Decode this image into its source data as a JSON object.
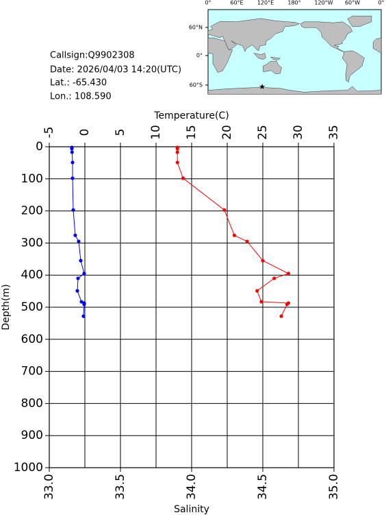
{
  "info": [
    "Callsign:Q9902308",
    "Date:  2026/04/03 14:20(UTC)",
    "Lat.:  -65.430",
    "Lon.:  108.590"
  ],
  "map": {
    "lon_labels": [
      "0°",
      "60°E",
      "120°E",
      "180°",
      "120°W",
      "60°W",
      "0°"
    ],
    "lat_labels": [
      "60°N",
      "0°",
      "60°S"
    ]
  },
  "chart_data": {
    "type": "line",
    "x_label": "Salinity",
    "x2_label": "Temperature(C)",
    "y_label": "Depth(m)",
    "xlim": [
      33.0,
      35.0
    ],
    "xticks": [
      {
        "value": 33.0,
        "label": "33.0"
      },
      33.5,
      {
        "value": 34.0,
        "label": "34.0"
      },
      34.5,
      {
        "value": 35.0,
        "label": "35.0"
      }
    ],
    "x2lim": [
      -5,
      35
    ],
    "x2ticks": [
      -5,
      0,
      5,
      10,
      15,
      20,
      25,
      30,
      35
    ],
    "ylim": [
      0,
      1000
    ],
    "yticks": [
      0,
      100,
      200,
      300,
      400,
      500,
      600,
      700,
      800,
      900,
      1000
    ],
    "y_inverted": true,
    "grid": true,
    "depth": [
      2,
      6,
      17,
      49,
      98,
      197,
      276,
      295,
      355,
      395,
      410,
      449,
      483,
      487,
      491,
      528
    ],
    "series": [
      {
        "color": "#0000ff",
        "axis": "x2",
        "values": [
          -1.83,
          -1.83,
          -1.8,
          -1.73,
          -1.73,
          -1.63,
          -1.35,
          -0.87,
          -0.58,
          -0.1,
          -0.96,
          -1.06,
          -0.48,
          -0.1,
          -0.1,
          -0.19
        ]
      },
      {
        "color": "#ff0000",
        "axis": "x",
        "values": [
          33.9,
          33.9,
          33.9,
          33.9,
          33.94,
          34.23,
          34.3,
          34.39,
          34.5,
          34.68,
          34.58,
          34.46,
          34.49,
          34.68,
          34.67,
          34.63
        ]
      }
    ]
  }
}
